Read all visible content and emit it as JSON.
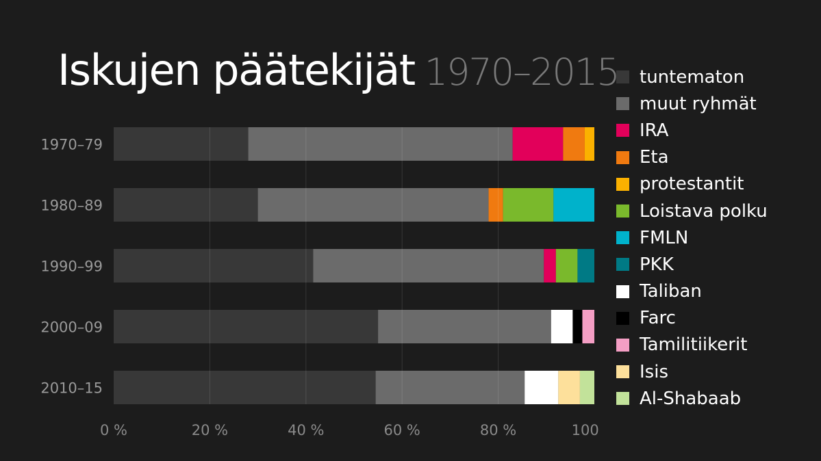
{
  "title": {
    "main": "Iskujen päätekijät",
    "sub": "1970–2015"
  },
  "chart_data": {
    "type": "bar",
    "orientation": "horizontal",
    "stacked": true,
    "normalized": true,
    "categories": [
      "1970–79",
      "1980–89",
      "1990–99",
      "2000–09",
      "2010–15"
    ],
    "series": [
      {
        "name": "tuntematon",
        "color": "#383838",
        "values": [
          28,
          30,
          41.5,
          55,
          54.5
        ]
      },
      {
        "name": "muut ryhmät",
        "color": "#6b6b6b",
        "values": [
          55,
          48,
          48,
          36,
          31
        ]
      },
      {
        "name": "IRA",
        "color": "#e2005a",
        "values": [
          10.5,
          0,
          2.5,
          0,
          0
        ]
      },
      {
        "name": "Eta",
        "color": "#f07a10",
        "values": [
          4.5,
          3,
          0,
          0,
          0
        ]
      },
      {
        "name": "protestantit",
        "color": "#fbb100",
        "values": [
          2,
          0,
          0,
          0,
          0
        ]
      },
      {
        "name": "Loistava polku",
        "color": "#7ab92c",
        "values": [
          0,
          10.5,
          4.5,
          0,
          0
        ]
      },
      {
        "name": "FMLN",
        "color": "#00b2cb",
        "values": [
          0,
          8.5,
          0,
          0,
          0
        ]
      },
      {
        "name": "PKK",
        "color": "#007a85",
        "values": [
          0,
          0,
          3.5,
          0,
          0
        ]
      },
      {
        "name": "Taliban",
        "color": "#ffffff",
        "values": [
          0,
          0,
          0,
          4.5,
          7
        ]
      },
      {
        "name": "Farc",
        "color": "#000000",
        "values": [
          0,
          0,
          0,
          2,
          0
        ]
      },
      {
        "name": "Tamilitiikerit",
        "color": "#f49ec4",
        "values": [
          0,
          0,
          0,
          2.5,
          0
        ]
      },
      {
        "name": "Isis",
        "color": "#fde09b",
        "values": [
          0,
          0,
          0,
          0,
          4.5
        ]
      },
      {
        "name": "Al-Shabaab",
        "color": "#c2e29a",
        "values": [
          0,
          0,
          0,
          0,
          3
        ]
      }
    ],
    "xaxis": {
      "ticks": [
        0,
        20,
        40,
        60,
        80,
        100
      ],
      "tick_labels": [
        "0 %",
        "20 %",
        "40 %",
        "60 %",
        "80 %",
        "100 %"
      ],
      "range": [
        0,
        100
      ]
    },
    "grid": true,
    "legend_position": "right"
  }
}
